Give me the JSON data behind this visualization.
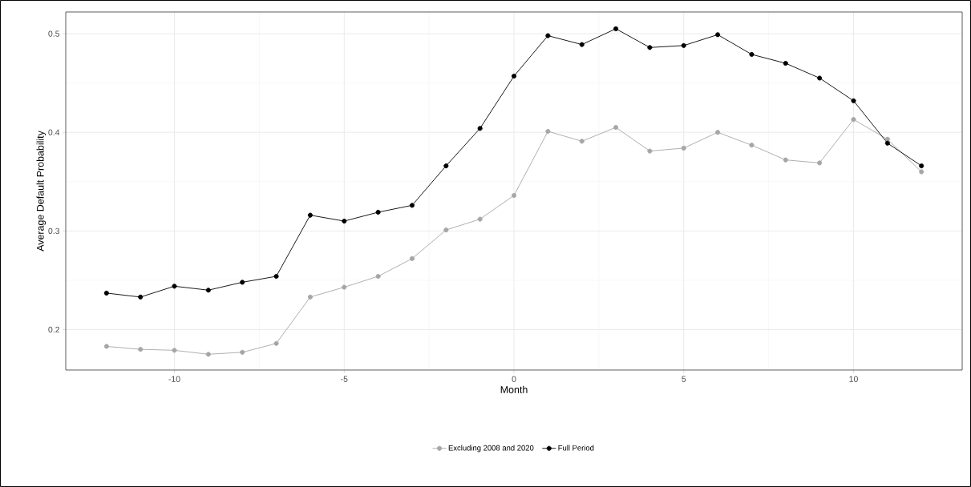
{
  "chart_data": {
    "type": "line",
    "xlabel": "Month",
    "ylabel": "Average Default Probability",
    "x": [
      -12,
      -11,
      -10,
      -9,
      -8,
      -7,
      -6,
      -5,
      -4,
      -3,
      -2,
      -1,
      0,
      1,
      2,
      3,
      4,
      5,
      6,
      7,
      8,
      9,
      10,
      11,
      12
    ],
    "series": [
      {
        "name": "Excluding 2008 and 2020",
        "color": "#a6a6a6",
        "values": [
          0.183,
          0.18,
          0.179,
          0.175,
          0.177,
          0.186,
          0.233,
          0.243,
          0.254,
          0.272,
          0.301,
          0.312,
          0.336,
          0.401,
          0.391,
          0.405,
          0.381,
          0.384,
          0.4,
          0.387,
          0.372,
          0.369,
          0.413,
          0.393,
          0.36
        ]
      },
      {
        "name": "Full Period",
        "color": "#000000",
        "values": [
          0.237,
          0.233,
          0.244,
          0.24,
          0.248,
          0.254,
          0.316,
          0.31,
          0.319,
          0.326,
          0.366,
          0.404,
          0.457,
          0.498,
          0.489,
          0.505,
          0.486,
          0.488,
          0.499,
          0.479,
          0.47,
          0.455,
          0.432,
          0.389,
          0.366
        ]
      }
    ],
    "xlim": [
      -13.2,
      13.2
    ],
    "ylim": [
      0.159,
      0.522
    ],
    "xticks": [
      -10,
      -5,
      0,
      5,
      10
    ],
    "yticks": [
      0.2,
      0.3,
      0.4,
      0.5
    ],
    "grid": true,
    "legend": "bottom",
    "marker": "circle",
    "line_style": "solid"
  }
}
